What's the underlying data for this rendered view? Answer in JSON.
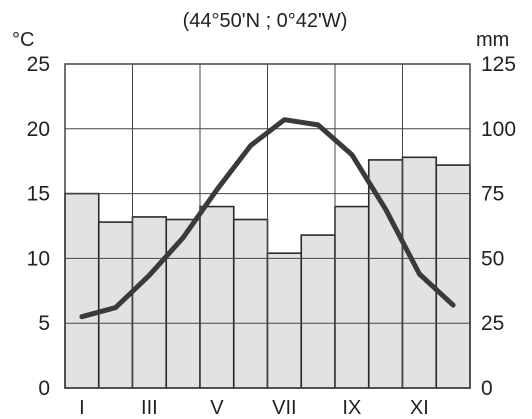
{
  "chart_data": {
    "type": "climograph",
    "title": "(44°50'N ; 0°42'W)",
    "left_unit": "°C",
    "right_unit": "mm",
    "left_ticks": [
      "0",
      "5",
      "10",
      "15",
      "20",
      "25"
    ],
    "right_ticks": [
      "0",
      "25",
      "50",
      "75",
      "100",
      "125"
    ],
    "left_range": [
      0,
      25
    ],
    "right_range": [
      0,
      125
    ],
    "month_labels": [
      "I",
      "III",
      "V",
      "VII",
      "IX",
      "XI"
    ],
    "precipitation_mm": [
      75,
      64,
      66,
      65,
      70,
      65,
      52,
      59,
      70,
      88,
      89,
      86
    ],
    "temperature_c": [
      5.5,
      6.2,
      8.7,
      11.6,
      15.3,
      18.7,
      20.7,
      20.3,
      18.0,
      13.8,
      8.8,
      6.4
    ],
    "grid": true,
    "colors": {
      "bar_fill": "#e2e2e2",
      "bar_stroke": "#2a2a2a",
      "line": "#3a3a3a",
      "grid": "#444444"
    }
  }
}
